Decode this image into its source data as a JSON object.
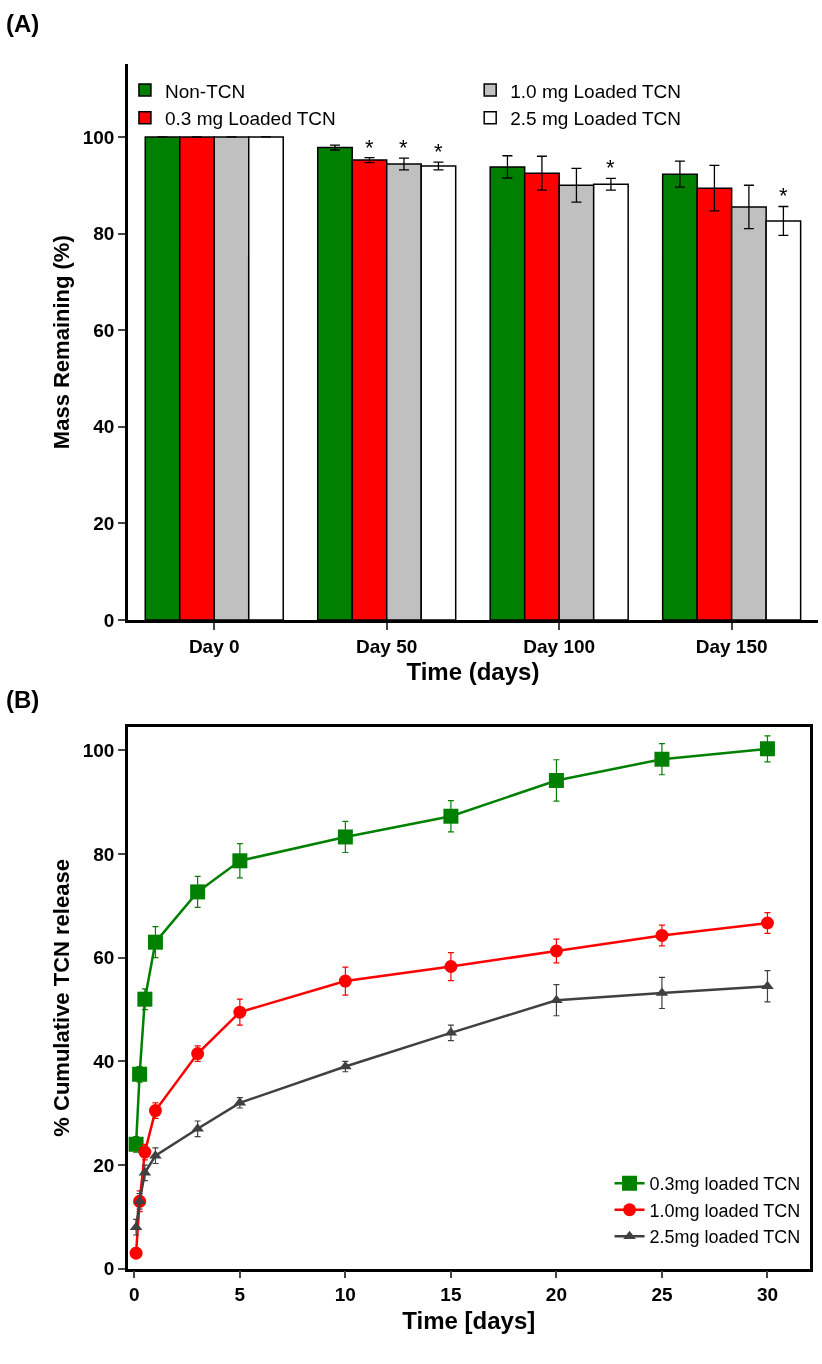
{
  "chart_data": [
    {
      "type": "bar",
      "title": "(A)",
      "xlabel": "Time (days)",
      "ylabel": "Mass Remaining (%)",
      "categories": [
        "Day 0",
        "Day 50",
        "Day 100",
        "Day 150"
      ],
      "series": [
        {
          "name": "Non-TCN",
          "color": "#008000",
          "values": [
            100,
            97.8,
            93.8,
            92.3
          ],
          "errors": [
            null,
            0.5,
            2.3,
            2.7
          ]
        },
        {
          "name": "0.3 mg Loaded TCN",
          "color": "#ff0000",
          "values": [
            100,
            95.2,
            92.5,
            89.4
          ],
          "errors": [
            null,
            0.5,
            3.5,
            4.7
          ],
          "value_labels": [
            null,
            "*",
            null,
            null
          ]
        },
        {
          "name": "1.0 mg Loaded TCN",
          "color": "#c0c0c0",
          "values": [
            100,
            94.4,
            90.0,
            85.5
          ],
          "errors": [
            null,
            1.2,
            3.5,
            4.5
          ],
          "value_labels": [
            null,
            "*",
            null,
            null
          ]
        },
        {
          "name": "2.5 mg Loaded TCN",
          "color": "#ffffff",
          "values": [
            100,
            94.0,
            90.2,
            82.6
          ],
          "errors": [
            null,
            0.8,
            1.2,
            3.0
          ],
          "value_labels": [
            null,
            "*",
            "*",
            "*"
          ]
        }
      ],
      "ylim": [
        0,
        115
      ],
      "yticks": [
        0,
        20,
        40,
        60,
        80,
        100
      ],
      "grid": false,
      "legend": "top"
    },
    {
      "type": "line",
      "title": "(B)",
      "xlabel": "Time [days]",
      "ylabel": "% Cumulative TCN release",
      "series": [
        {
          "name": "0.3mg loaded TCN",
          "color": "#008000",
          "marker": "square",
          "x": [
            0.083,
            0.25,
            0.5,
            1,
            3,
            5,
            10,
            15,
            20,
            25,
            30
          ],
          "values": [
            24,
            37.5,
            52,
            63,
            72.7,
            78.7,
            83.3,
            87.3,
            94.2,
            98.3,
            100.3
          ],
          "errors": [
            1.5,
            1.5,
            2,
            3,
            3,
            3.3,
            3,
            3,
            4,
            3,
            2.5
          ]
        },
        {
          "name": "1.0mg loaded TCN",
          "color": "#ff0000",
          "marker": "circle",
          "x": [
            0.083,
            0.25,
            0.5,
            1,
            3,
            5,
            10,
            15,
            20,
            25,
            30
          ],
          "values": [
            3,
            13,
            22.5,
            30.5,
            41.5,
            49.5,
            55.5,
            58.3,
            61.3,
            64.3,
            66.7
          ],
          "errors": [
            1,
            2,
            1.5,
            1.5,
            1.5,
            2.5,
            2.7,
            2.7,
            2.3,
            2,
            2
          ]
        },
        {
          "name": "2.5mg loaded TCN",
          "color": "#404040",
          "marker": "triangle",
          "x": [
            0.083,
            0.25,
            0.5,
            1,
            3,
            5,
            10,
            15,
            20,
            25,
            30
          ],
          "values": [
            8,
            13,
            18.5,
            21.8,
            27,
            32,
            39,
            45.5,
            51.8,
            53.2,
            54.5
          ],
          "errors": [
            1.5,
            1.5,
            1.5,
            1.5,
            1.5,
            1,
            1,
            1.5,
            3,
            3,
            3
          ]
        }
      ],
      "xlim": [
        -0.3,
        32
      ],
      "xticks": [
        0,
        5,
        10,
        15,
        20,
        25,
        30
      ],
      "ylim": [
        0,
        104.5
      ],
      "yticks": [
        0,
        20,
        40,
        60,
        80,
        100
      ],
      "grid": false,
      "legend": "bottom right",
      "line_style": "solid"
    }
  ]
}
